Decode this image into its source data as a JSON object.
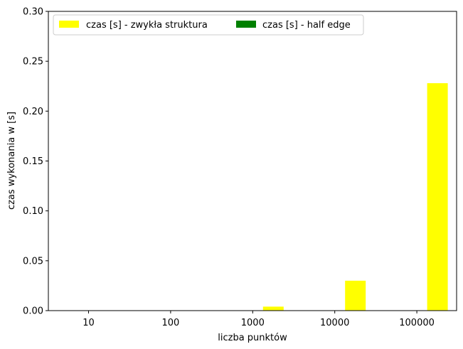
{
  "chart_data": {
    "type": "bar",
    "xlabel": "liczba punktów",
    "ylabel": "czas wykonania w [s]",
    "categories": [
      "10",
      "100",
      "1000",
      "10000",
      "100000"
    ],
    "ylim": [
      0,
      0.3
    ],
    "yticks": [
      "0.00",
      "0.05",
      "0.10",
      "0.15",
      "0.20",
      "0.25",
      "0.30"
    ],
    "grid": false,
    "legend_position": "top-left",
    "series": [
      {
        "name": "czas [s] - zwykła struktura",
        "color": "#ffff00",
        "values": [
          0.0,
          0.0,
          0.004,
          0.03,
          0.228
        ]
      },
      {
        "name": "czas [s] - half edge",
        "color": "#008000",
        "values": [
          0.0,
          0.0,
          0.0,
          0.0,
          0.0
        ]
      }
    ]
  }
}
